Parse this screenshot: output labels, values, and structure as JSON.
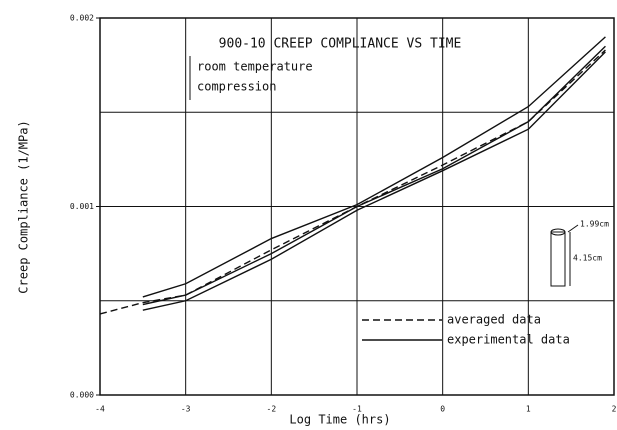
{
  "chart_data": {
    "type": "line",
    "title": "900-10 CREEP COMPLIANCE VS TIME",
    "annotations": [
      "room temperature",
      "compression",
      "1.99cm",
      "4.15cm"
    ],
    "x_label": "Log Time (hrs)",
    "y_label": "Creep Compliance (1/MPa)",
    "xlim": [
      -4,
      2
    ],
    "ylim": [
      0,
      0.002
    ],
    "xticks": [
      -4,
      -3,
      -2,
      -1,
      0,
      1,
      2
    ],
    "yticks": [
      {
        "value": 0,
        "label": "0.000"
      },
      {
        "value": 0.001,
        "label": "0.001"
      },
      {
        "value": 0.002,
        "label": "0.002"
      }
    ],
    "y_grid": [
      0.0005,
      0.001,
      0.0015
    ],
    "grid": true,
    "legend": "lower right",
    "x": [
      -4,
      -3.5,
      -3,
      -2,
      -1,
      0,
      1,
      1.9
    ],
    "series": [
      {
        "name": "averaged data",
        "color": "#111111",
        "dashed": true,
        "values": [
          0.00043,
          0.00049,
          0.00053,
          0.00077,
          0.001,
          0.00122,
          0.00145,
          0.00183
        ]
      },
      {
        "name": "experimental data",
        "color": "#111111",
        "values": [
          null,
          0.00052,
          0.00059,
          0.00083,
          0.00101,
          0.00126,
          0.00153,
          0.0019
        ]
      },
      {
        "color": "#111111",
        "values": [
          null,
          0.00048,
          0.00053,
          0.00075,
          0.001,
          0.0012,
          0.00145,
          0.00185
        ]
      },
      {
        "color": "#111111",
        "values": [
          null,
          0.00045,
          0.0005,
          0.00072,
          0.00098,
          0.00119,
          0.00141,
          0.00182
        ]
      }
    ]
  }
}
